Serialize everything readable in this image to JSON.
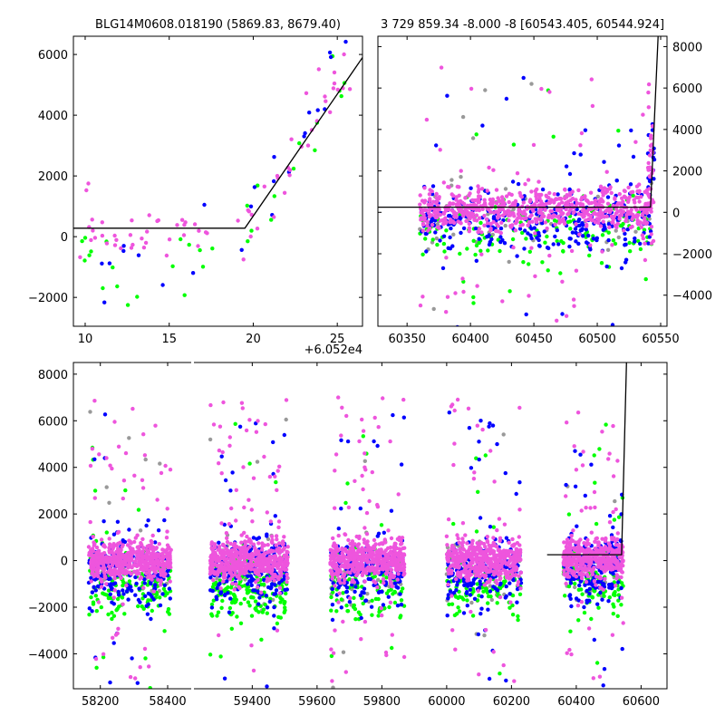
{
  "colors": {
    "green": "#00ff00",
    "blue": "#0000ff",
    "pink": "#ee55dd",
    "gray": "#999999",
    "line": "#000000"
  },
  "chart_data": [
    {
      "id": "top-left",
      "type": "scatter",
      "title": "BLG14M0608.018190 (5869.83, 8679.40)",
      "xlim": [
        9.3,
        26.5
      ],
      "ylim": [
        -2950,
        6600
      ],
      "xticks": [
        10,
        15,
        20,
        25
      ],
      "xtick_labels": [
        "10",
        "15",
        "20",
        "25"
      ],
      "yticks": [
        -2000,
        0,
        2000,
        4000,
        6000
      ],
      "ytick_labels": [
        "−2000",
        "0",
        "2000",
        "4000",
        "6000"
      ],
      "x_offset_label": "+6.052e4",
      "model_line": {
        "x": [
          9.3,
          19.5,
          26.5
        ],
        "y": [
          280,
          280,
          5900
        ]
      },
      "seed": 11,
      "clusters": [
        {
          "x0": 9.5,
          "x1": 19.5,
          "ymean": 150,
          "ysd": 450,
          "n": {
            "pink": 40,
            "green": 18,
            "blue": 10
          }
        },
        {
          "x0": 19.5,
          "x1": 25.8,
          "ymean": 0,
          "ysd": 0,
          "trend": [
            280,
            5600
          ],
          "scatter": 700,
          "n": {
            "pink": 30,
            "green": 14,
            "blue": 14
          }
        }
      ]
    },
    {
      "id": "top-right",
      "type": "scatter",
      "title": "3 729 859.34 -8.000 -8 [60543.405, 60544.924]",
      "xlim": [
        60327,
        60555
      ],
      "ylim": [
        -5500,
        8500
      ],
      "xticks": [
        60350,
        60400,
        60450,
        60500,
        60550
      ],
      "xtick_labels": [
        "60350",
        "60400",
        "60450",
        "60500",
        "60550"
      ],
      "yticks": [
        -4000,
        -2000,
        0,
        2000,
        4000,
        6000,
        8000
      ],
      "ytick_labels": [
        "−4000",
        "−2000",
        "0",
        "2000",
        "4000",
        "6000",
        "8000"
      ],
      "yaxis_side": "right",
      "model_line": {
        "x": [
          60327,
          60542,
          60548
        ],
        "y": [
          250,
          250,
          8500
        ]
      },
      "seed": 23,
      "clusters": [
        {
          "x0": 60360,
          "x1": 60543,
          "ymean": 200,
          "ysd": 500,
          "tail": true,
          "n": {
            "pink": 700,
            "blue": 320,
            "green": 160,
            "gray": 60
          }
        },
        {
          "x0": 60540,
          "x1": 60545,
          "ymean": 2000,
          "ysd": 1500,
          "n": {
            "pink": 30,
            "blue": 20
          }
        }
      ]
    },
    {
      "id": "bottom",
      "type": "scatter",
      "title": "",
      "xlim": [
        58120,
        60680
      ],
      "ylim": [
        -5500,
        8500
      ],
      "xticks": [
        58200,
        58400,
        59400,
        59600,
        59800,
        60000,
        60200,
        60400,
        60600
      ],
      "xtick_labels": [
        "58200",
        "58400",
        "59400",
        "59600",
        "59800",
        "60000",
        "60200",
        "60400",
        "60600"
      ],
      "yticks": [
        -4000,
        -2000,
        0,
        2000,
        4000,
        6000,
        8000
      ],
      "ytick_labels": [
        "−4000",
        "−2000",
        "0",
        "2000",
        "4000",
        "6000",
        "8000"
      ],
      "axis_break_between": [
        58400,
        59400
      ],
      "model_line": {
        "x": [
          60310,
          60540,
          60555
        ],
        "y": [
          250,
          250,
          8500
        ]
      },
      "seed": 37,
      "clusters": [
        {
          "x0": 58165,
          "x1": 58410,
          "ymean": 0,
          "ysd": 450,
          "tail": true,
          "n": {
            "pink": 520,
            "blue": 200,
            "green": 150,
            "gray": 40
          }
        },
        {
          "x0": 59270,
          "x1": 59510,
          "ymean": 0,
          "ysd": 450,
          "tail": true,
          "n": {
            "pink": 560,
            "blue": 240,
            "green": 200,
            "gray": 40
          }
        },
        {
          "x0": 59640,
          "x1": 59870,
          "ymean": 0,
          "ysd": 450,
          "tail": true,
          "n": {
            "pink": 520,
            "blue": 200,
            "green": 120,
            "gray": 40
          }
        },
        {
          "x0": 60000,
          "x1": 60230,
          "ymean": 0,
          "ysd": 450,
          "tail": true,
          "n": {
            "pink": 480,
            "blue": 190,
            "green": 120,
            "gray": 40
          }
        },
        {
          "x0": 60360,
          "x1": 60545,
          "ymean": 100,
          "ysd": 450,
          "tail": true,
          "n": {
            "pink": 420,
            "blue": 200,
            "green": 110,
            "gray": 30
          }
        }
      ]
    }
  ]
}
